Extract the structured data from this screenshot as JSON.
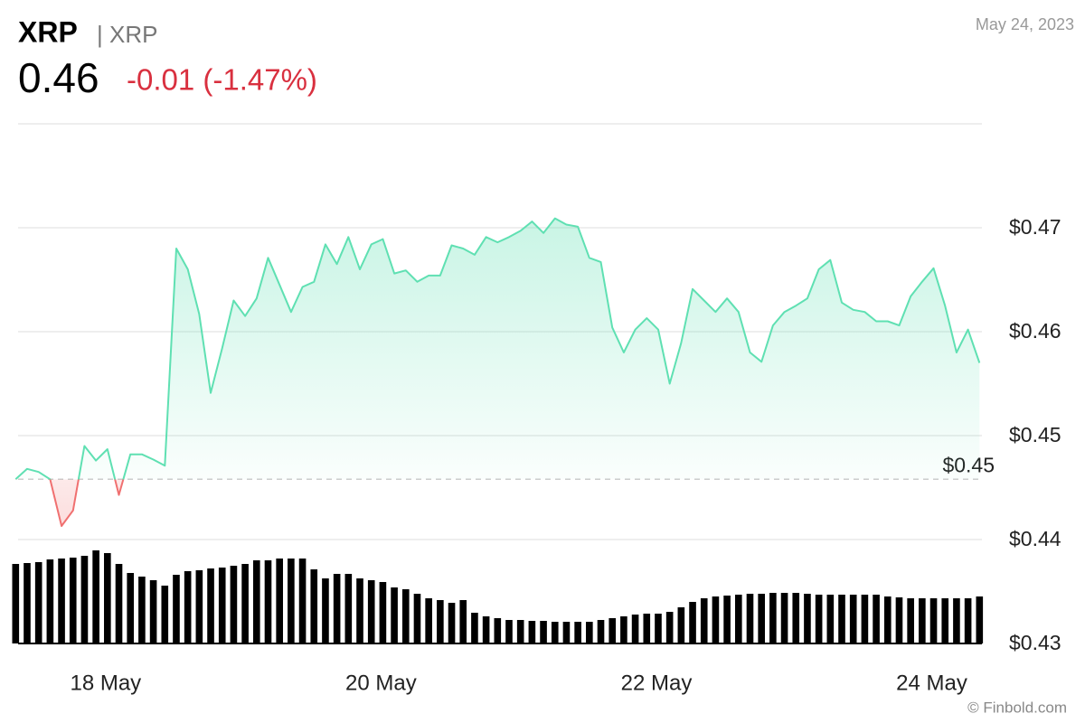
{
  "chart_data": {
    "type": "line",
    "title": "XRP",
    "subtitle": "| XRP",
    "price": 0.46,
    "change": "-0.01 (-1.47%)",
    "date": "May 24, 2023",
    "source": "© Finbold.com",
    "categories": [
      null,
      null,
      null,
      null,
      null,
      null,
      null,
      null,
      "18 May",
      null,
      null,
      null,
      null,
      null,
      null,
      null,
      null,
      null,
      null,
      null,
      null,
      null,
      null,
      null,
      null,
      null,
      null,
      null,
      null,
      null,
      null,
      null,
      "20 May",
      null,
      null,
      null,
      null,
      null,
      null,
      null,
      null,
      null,
      null,
      null,
      null,
      null,
      null,
      null,
      null,
      null,
      null,
      null,
      null,
      null,
      null,
      null,
      "22 May",
      null,
      null,
      null,
      null,
      null,
      null,
      null,
      null,
      null,
      null,
      null,
      null,
      null,
      null,
      null,
      null,
      null,
      null,
      null,
      null,
      null,
      null,
      null,
      "24 May",
      null,
      null,
      null,
      null
    ],
    "series": [
      {
        "name": "XRP",
        "color": "#5fe0b2",
        "down_color": "#f07070",
        "values": [
          0.4458,
          0.4468,
          0.4465,
          0.4458,
          0.4413,
          0.4428,
          0.449,
          0.4476,
          0.4487,
          0.4443,
          0.4482,
          0.4482,
          0.4477,
          0.4471,
          0.468,
          0.466,
          0.4617,
          0.4541,
          0.4584,
          0.463,
          0.4615,
          0.4632,
          0.4671,
          0.4645,
          0.4619,
          0.4643,
          0.4648,
          0.4684,
          0.4665,
          0.4691,
          0.466,
          0.4684,
          0.4689,
          0.4656,
          0.4659,
          0.4648,
          0.4654,
          0.4654,
          0.4683,
          0.468,
          0.4674,
          0.4691,
          0.4686,
          0.4691,
          0.4697,
          0.4706,
          0.4695,
          0.4709,
          0.4703,
          0.4701,
          0.4671,
          0.4667,
          0.4604,
          0.458,
          0.4602,
          0.4613,
          0.4602,
          0.455,
          0.4589,
          0.4641,
          0.463,
          0.4619,
          0.4632,
          0.4619,
          0.458,
          0.4571,
          0.4606,
          0.4619,
          0.4625,
          0.4632,
          0.466,
          0.4669,
          0.4628,
          0.4621,
          0.4619,
          0.461,
          0.461,
          0.4606,
          0.4634,
          0.4648,
          0.4661,
          0.4625,
          0.458,
          0.4602,
          0.457
        ]
      }
    ],
    "volume": {
      "color": "#000000",
      "ylim": [
        0,
        100
      ],
      "values": [
        88,
        89,
        90,
        93,
        94,
        95,
        97,
        103,
        100,
        88,
        78,
        74,
        70,
        64,
        76,
        80,
        81,
        83,
        84,
        86,
        88,
        92,
        92,
        94,
        94,
        94,
        82,
        72,
        77,
        77,
        72,
        70,
        68,
        62,
        60,
        55,
        50,
        48,
        45,
        48,
        34,
        30,
        28,
        26,
        26,
        25,
        25,
        24,
        24,
        24,
        24,
        26,
        28,
        30,
        32,
        33,
        33,
        35,
        40,
        46,
        50,
        52,
        53,
        54,
        55,
        55,
        56,
        56,
        56,
        55,
        54,
        54,
        54,
        54,
        54,
        54,
        52,
        51,
        50,
        50,
        50,
        50,
        50,
        50,
        52
      ]
    },
    "baseline": {
      "value": 0.4458,
      "label": "$0.45"
    },
    "ylim": [
      0.43,
      0.48
    ],
    "yticks": [
      {
        "value": 0.43,
        "label": "$0.43"
      },
      {
        "value": 0.44,
        "label": "$0.44"
      },
      {
        "value": 0.45,
        "label": "$0.45"
      },
      {
        "value": 0.46,
        "label": "$0.46"
      },
      {
        "value": 0.47,
        "label": "$0.47"
      }
    ],
    "grid": true
  }
}
